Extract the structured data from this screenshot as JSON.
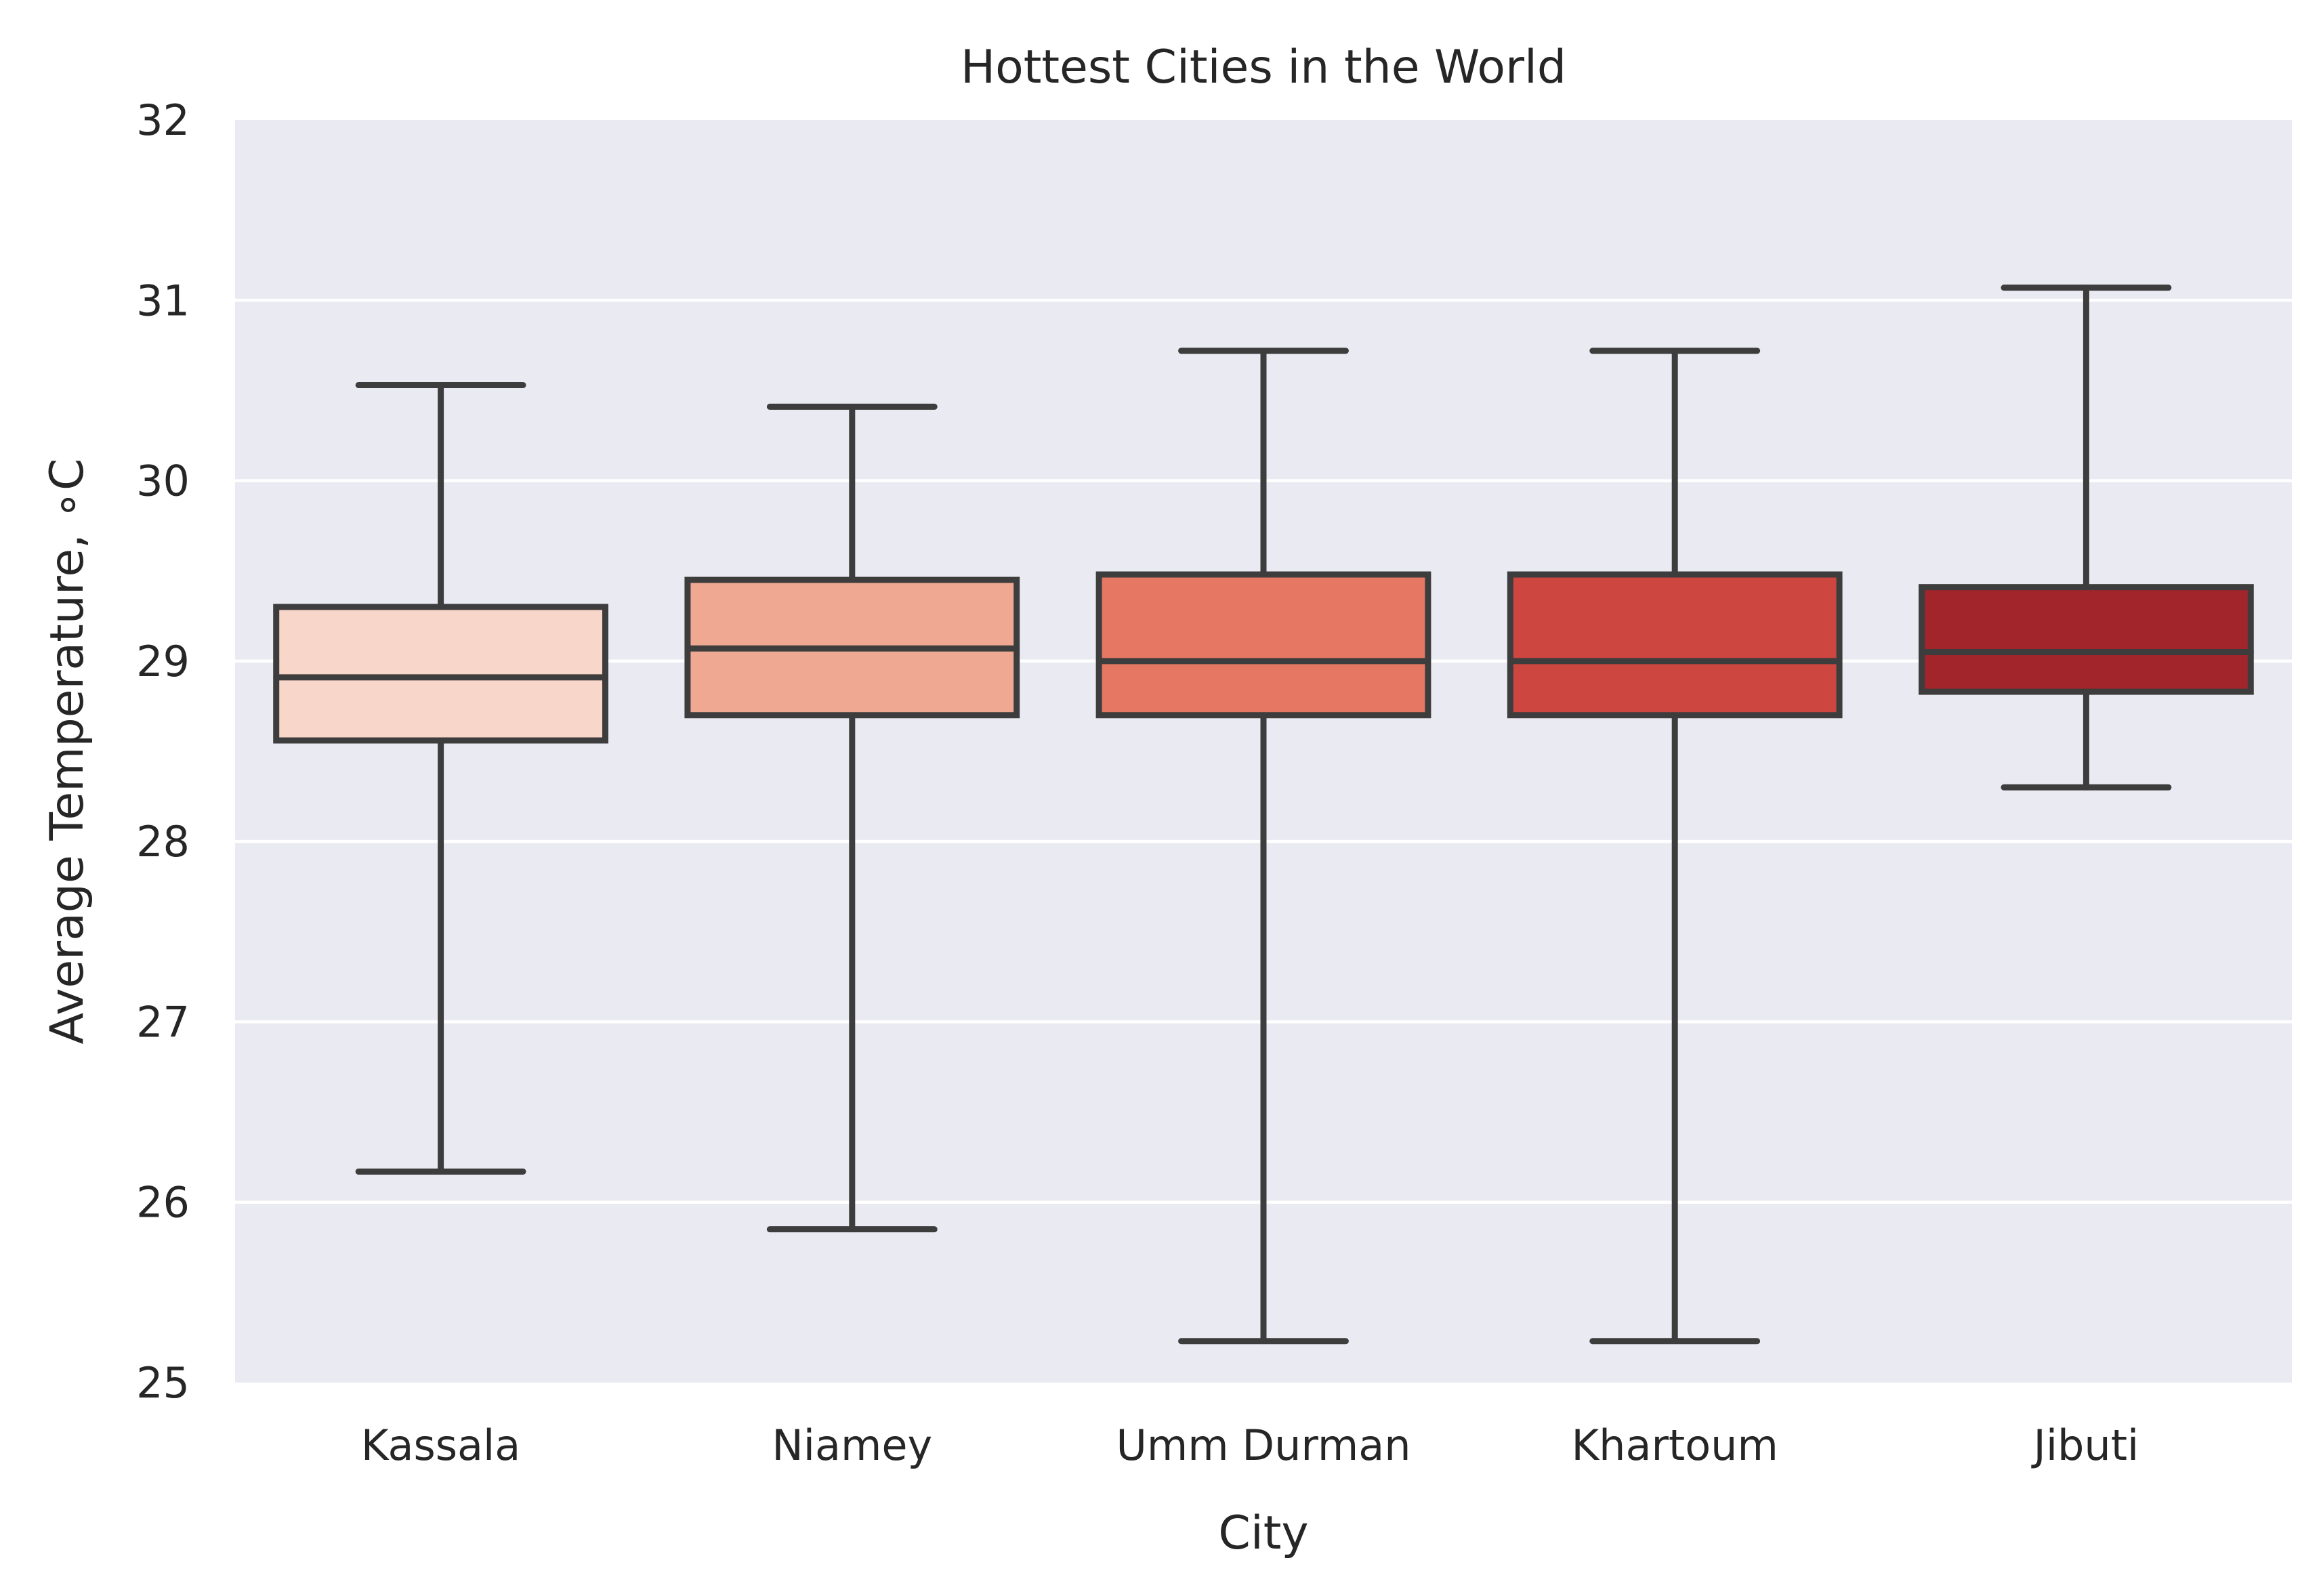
{
  "chart_data": {
    "type": "box",
    "title": "Hottest Cities in the World",
    "xlabel": "City",
    "ylabel": "Average Temperature, ∘C",
    "ylim": [
      25,
      32
    ],
    "yticks": [
      25,
      26,
      27,
      28,
      29,
      30,
      31,
      32
    ],
    "grid": true,
    "background": "#eaeaf2",
    "box_edge_color": "#3d3d3d",
    "series": [
      {
        "category": "Kassala",
        "whisker_low": 26.17,
        "q1": 28.56,
        "median": 28.91,
        "q3": 29.3,
        "whisker_high": 30.53,
        "color": "#f8d6c9"
      },
      {
        "category": "Niamey",
        "whisker_low": 25.85,
        "q1": 28.7,
        "median": 29.07,
        "q3": 29.45,
        "whisker_high": 30.41,
        "color": "#efa892"
      },
      {
        "category": "Umm Durman",
        "whisker_low": 25.23,
        "q1": 28.7,
        "median": 29.0,
        "q3": 29.48,
        "whisker_high": 30.72,
        "color": "#e67863"
      },
      {
        "category": "Khartoum",
        "whisker_low": 25.23,
        "q1": 28.7,
        "median": 29.0,
        "q3": 29.48,
        "whisker_high": 30.72,
        "color": "#cd4640"
      },
      {
        "category": "Jibuti",
        "whisker_low": 28.3,
        "q1": 28.83,
        "median": 29.05,
        "q3": 29.41,
        "whisker_high": 31.07,
        "color": "#a1252b"
      }
    ]
  }
}
